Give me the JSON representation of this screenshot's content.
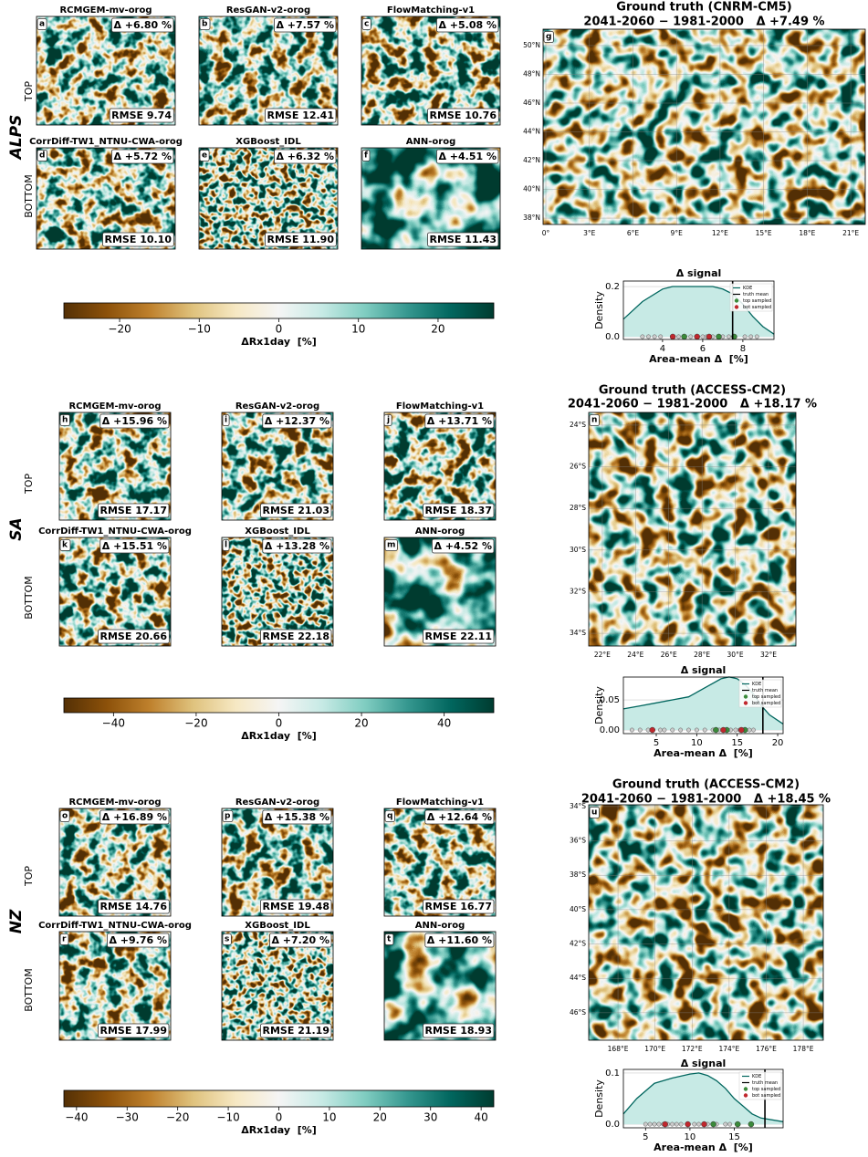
{
  "colormap": [
    "#543005",
    "#8c510a",
    "#bf812d",
    "#dfc27d",
    "#f6e8c3",
    "#f5f5f5",
    "#c7eae5",
    "#80cdc1",
    "#35978f",
    "#01665e",
    "#003c30"
  ],
  "regions": [
    {
      "name": "ALPS",
      "top_label": "TOP",
      "bottom_label": "BOTTOM",
      "top_color": "#2e7d32",
      "bottom_color": "#b22222",
      "panels": [
        {
          "letter": "a",
          "title": "RCMGEM-mv-orog",
          "delta": "Δ +6.80 %",
          "rmse": "RMSE 9.74"
        },
        {
          "letter": "b",
          "title": "ResGAN-v2-orog",
          "delta": "Δ +7.57 %",
          "rmse": "RMSE 12.41"
        },
        {
          "letter": "c",
          "title": "FlowMatching-v1",
          "delta": "Δ +5.08 %",
          "rmse": "RMSE 10.76"
        },
        {
          "letter": "d",
          "title": "CorrDiff-TW1_NTNU-CWA-orog",
          "delta": "Δ +5.72 %",
          "rmse": "RMSE 10.10"
        },
        {
          "letter": "e",
          "title": "XGBoost_IDL",
          "delta": "Δ +6.32 %",
          "rmse": "RMSE 11.90"
        },
        {
          "letter": "f",
          "title": "ANN-orog",
          "delta": "Δ +4.51 %",
          "rmse": "RMSE 11.43"
        }
      ],
      "truth": {
        "letter": "g",
        "title": "Ground truth (CNRM-CM5)",
        "subtitle": "2041-2060 − 1981-2000   Δ +7.49 %",
        "lat_lim": [
          37.56,
          51.14
        ],
        "lat_ticks": [
          {
            "value": 38,
            "label": "38°N"
          },
          {
            "value": 40,
            "label": "40°N"
          },
          {
            "value": 42,
            "label": "42°N"
          },
          {
            "value": 44,
            "label": "44°N"
          },
          {
            "value": 46,
            "label": "46°N"
          },
          {
            "value": 48,
            "label": "48°N"
          },
          {
            "value": 50,
            "label": "50°N"
          }
        ],
        "lon_lim": [
          -0.19,
          22.0
        ],
        "lon_ticks": [
          {
            "value": 0,
            "label": "0°"
          },
          {
            "value": 3,
            "label": "3°E"
          },
          {
            "value": 6,
            "label": "6°E"
          },
          {
            "value": 9,
            "label": "9°E"
          },
          {
            "value": 12,
            "label": "12°E"
          },
          {
            "value": 15,
            "label": "15°E"
          },
          {
            "value": 18,
            "label": "18°E"
          },
          {
            "value": 21,
            "label": "21°E"
          }
        ]
      },
      "colorbar": {
        "label": "ΔRx1day  [%]",
        "lim": [
          -27,
          27
        ],
        "ticks": [
          {
            "value": -20,
            "label": "−20"
          },
          {
            "value": -10,
            "label": "−10"
          },
          0,
          10,
          20
        ]
      },
      "kde": {
        "type": "line",
        "title": "Δ signal",
        "xlabel": "Area-mean Δ  [%]",
        "ylabel": "Density",
        "xlim": [
          2.05,
          9.55
        ],
        "ylim": [
          -0.011,
          0.222
        ],
        "xticks": [
          4,
          6,
          8
        ],
        "yticks": [
          {
            "value": 0,
            "label": "0.0"
          },
          {
            "value": 0.2,
            "label": "0.2"
          }
        ],
        "x": [
          2.05,
          3,
          4,
          4.5,
          5,
          6,
          6.5,
          7,
          7.5,
          8,
          8.5,
          9,
          9.55
        ],
        "density": [
          0.07,
          0.14,
          0.19,
          0.2,
          0.2,
          0.2,
          0.2,
          0.19,
          0.17,
          0.13,
          0.08,
          0.04,
          0.01
        ],
        "samples": [
          3.0,
          3.3,
          3.6,
          3.9,
          4.5,
          4.8,
          5.1,
          5.4,
          6.0,
          6.2,
          6.5,
          6.8,
          7.0,
          7.3,
          7.6,
          8.1,
          8.4,
          8.7
        ],
        "top_sampled": [
          6.8,
          7.57,
          5.08
        ],
        "bot_sampled": [
          5.72,
          6.32,
          4.51
        ],
        "truth_mean": 7.49,
        "legend": [
          "KDE",
          "truth mean",
          "top sampled",
          "bot sampled"
        ],
        "kde_color": "#01665e",
        "fill_color": "#c7eae5",
        "truth_color": "#000000",
        "top_color": "#3a8a3a",
        "bot_color": "#c0272d",
        "sample_color": "#cccccc"
      }
    },
    {
      "name": "SA",
      "top_label": "TOP",
      "bottom_label": "BOTTOM",
      "top_color": "#2e7d32",
      "bottom_color": "#b22222",
      "panels": [
        {
          "letter": "h",
          "title": "RCMGEM-mv-orog",
          "delta": "Δ +15.96 %",
          "rmse": "RMSE 17.17"
        },
        {
          "letter": "i",
          "title": "ResGAN-v2-orog",
          "delta": "Δ +12.37 %",
          "rmse": "RMSE 21.03"
        },
        {
          "letter": "j",
          "title": "FlowMatching-v1",
          "delta": "Δ +13.71 %",
          "rmse": "RMSE 18.37"
        },
        {
          "letter": "k",
          "title": "CorrDiff-TW1_NTNU-CWA-orog",
          "delta": "Δ +15.51 %",
          "rmse": "RMSE 20.66"
        },
        {
          "letter": "l",
          "title": "XGBoost_IDL",
          "delta": "Δ +13.28 %",
          "rmse": "RMSE 22.18"
        },
        {
          "letter": "m",
          "title": "ANN-orog",
          "delta": "Δ +4.52 %",
          "rmse": "RMSE 22.11"
        }
      ],
      "truth": {
        "letter": "n",
        "title": "Ground truth (ACCESS-CM2)",
        "subtitle": "2041-2060 − 1981-2000   Δ +18.17 %",
        "lat_lim": [
          -34.61,
          -23.39
        ],
        "lat_ticks": [
          {
            "value": -24,
            "label": "24°S"
          },
          {
            "value": -26,
            "label": "26°S"
          },
          {
            "value": -28,
            "label": "28°S"
          },
          {
            "value": -30,
            "label": "30°S"
          },
          {
            "value": -32,
            "label": "32°S"
          },
          {
            "value": -34,
            "label": "34°S"
          }
        ],
        "lon_lim": [
          21.18,
          33.65
        ],
        "lon_ticks": [
          {
            "value": 22,
            "label": "22°E"
          },
          {
            "value": 24,
            "label": "24°E"
          },
          {
            "value": 26,
            "label": "26°E"
          },
          {
            "value": 28,
            "label": "28°E"
          },
          {
            "value": 30,
            "label": "30°E"
          },
          {
            "value": 32,
            "label": "32°E"
          }
        ]
      },
      "colorbar": {
        "label": "ΔRx1day  [%]",
        "lim": [
          -52,
          52
        ],
        "ticks": [
          {
            "value": -40,
            "label": "−40"
          },
          {
            "value": -20,
            "label": "−20"
          },
          0,
          20,
          40
        ]
      },
      "kde": {
        "type": "line",
        "title": "Δ signal",
        "xlabel": "Area-mean Δ  [%]",
        "ylabel": "Density",
        "xlim": [
          0.94,
          20.67
        ],
        "ylim": [
          -0.006,
          0.0879
        ],
        "xticks": [
          5,
          10,
          15,
          20
        ],
        "yticks": [
          {
            "value": 0,
            "label": "0.00"
          },
          {
            "value": 0.05,
            "label": "0.05"
          }
        ],
        "x": [
          0.94,
          3,
          5,
          7,
          9,
          11,
          13,
          14,
          15,
          16,
          17,
          18,
          19,
          20.67
        ],
        "density": [
          0.035,
          0.04,
          0.045,
          0.05,
          0.055,
          0.07,
          0.085,
          0.088,
          0.085,
          0.075,
          0.06,
          0.04,
          0.025,
          0.01
        ],
        "samples": [
          2,
          3,
          4,
          5.5,
          6,
          7,
          8,
          9,
          10,
          11,
          12,
          12.8,
          13.5,
          14.2,
          14.8,
          15.3,
          16.5,
          17
        ],
        "top_sampled": [
          15.96,
          12.37,
          13.71
        ],
        "bot_sampled": [
          15.51,
          13.28,
          4.52
        ],
        "truth_mean": 18.17,
        "legend": [
          "KDE",
          "truth mean",
          "top sampled",
          "bot sampled"
        ],
        "kde_color": "#01665e",
        "fill_color": "#c7eae5",
        "truth_color": "#000000",
        "top_color": "#3a8a3a",
        "bot_color": "#c0272d",
        "sample_color": "#cccccc"
      }
    },
    {
      "name": "NZ",
      "top_label": "TOP",
      "bottom_label": "BOTTOM",
      "top_color": "#2e7d32",
      "bottom_color": "#b22222",
      "panels": [
        {
          "letter": "o",
          "title": "RCMGEM-mv-orog",
          "delta": "Δ +16.89 %",
          "rmse": "RMSE 14.76"
        },
        {
          "letter": "p",
          "title": "ResGAN-v2-orog",
          "delta": "Δ +15.38 %",
          "rmse": "RMSE 19.48"
        },
        {
          "letter": "q",
          "title": "FlowMatching-v1",
          "delta": "Δ +12.64 %",
          "rmse": "RMSE 16.77"
        },
        {
          "letter": "r",
          "title": "CorrDiff-TW1_NTNU-CWA-orog",
          "delta": "Δ +9.76 %",
          "rmse": "RMSE 17.99"
        },
        {
          "letter": "s",
          "title": "XGBoost_IDL",
          "delta": "Δ +7.20 %",
          "rmse": "RMSE 21.19"
        },
        {
          "letter": "t",
          "title": "ANN-orog",
          "delta": "Δ +11.60 %",
          "rmse": "RMSE 18.93"
        }
      ],
      "truth": {
        "letter": "u",
        "title": "Ground truth (ACCESS-CM2)",
        "subtitle": "2041-2060 − 1981-2000   Δ +18.45 %",
        "lat_lim": [
          -47.6,
          -33.9
        ],
        "lat_ticks": [
          {
            "value": -34,
            "label": "34°S"
          },
          {
            "value": -36,
            "label": "36°S"
          },
          {
            "value": -38,
            "label": "38°S"
          },
          {
            "value": -40,
            "label": "40°S"
          },
          {
            "value": -42,
            "label": "42°S"
          },
          {
            "value": -44,
            "label": "44°S"
          },
          {
            "value": -46,
            "label": "46°S"
          }
        ],
        "lon_lim": [
          166.42,
          179.08
        ],
        "lon_ticks": [
          {
            "value": 168,
            "label": "168°E"
          },
          {
            "value": 170,
            "label": "170°E"
          },
          {
            "value": 172,
            "label": "172°E"
          },
          {
            "value": 174,
            "label": "174°E"
          },
          {
            "value": 176,
            "label": "176°E"
          },
          {
            "value": 178,
            "label": "178°E"
          }
        ]
      },
      "colorbar": {
        "label": "ΔRx1day  [%]",
        "lim": [
          -42.5,
          42.5
        ],
        "ticks": [
          {
            "value": -40,
            "label": "−40"
          },
          {
            "value": -30,
            "label": "−30"
          },
          {
            "value": -20,
            "label": "−20"
          },
          {
            "value": -10,
            "label": "−10"
          },
          0,
          10,
          20,
          30,
          40
        ]
      },
      "kde": {
        "type": "line",
        "title": "Δ signal",
        "xlabel": "Area-mean Δ  [%]",
        "ylabel": "Density",
        "xlim": [
          2.5,
          20.5
        ],
        "ylim": [
          -0.007,
          0.107
        ],
        "xticks": [
          5,
          10,
          15
        ],
        "yticks": [
          {
            "value": 0,
            "label": "0.0"
          },
          {
            "value": 0.1,
            "label": "0.1"
          }
        ],
        "x": [
          2.5,
          4,
          6,
          8,
          10,
          11,
          12,
          13,
          14,
          15,
          16,
          17,
          18,
          20.5
        ],
        "density": [
          0.02,
          0.05,
          0.08,
          0.09,
          0.098,
          0.1,
          0.095,
          0.085,
          0.07,
          0.05,
          0.035,
          0.02,
          0.012,
          0.005
        ],
        "samples": [
          5,
          5.5,
          6,
          6.5,
          7,
          7.5,
          8,
          8.5,
          9,
          10.5,
          11,
          12,
          13,
          14,
          14.5
        ],
        "top_sampled": [
          16.89,
          15.38,
          12.64
        ],
        "bot_sampled": [
          9.76,
          7.2,
          11.6
        ],
        "truth_mean": 18.45,
        "legend": [
          "KDE",
          "truth mean",
          "top sampled",
          "bot sampled"
        ],
        "kde_color": "#01665e",
        "fill_color": "#c7eae5",
        "truth_color": "#000000",
        "top_color": "#3a8a3a",
        "bot_color": "#c0272d",
        "sample_color": "#cccccc"
      }
    }
  ]
}
